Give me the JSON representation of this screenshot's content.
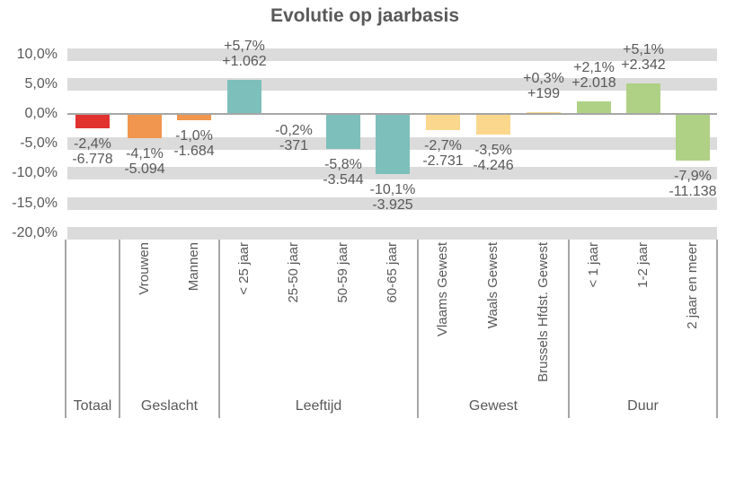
{
  "chart_data": {
    "type": "bar",
    "title": "Evolutie op jaarbasis",
    "xlabel": "",
    "ylabel": "",
    "ylim": [
      -20,
      10
    ],
    "grid": "horizontal-bands",
    "legend": "none",
    "yticks": [
      {
        "value": 10,
        "label": "10,0%"
      },
      {
        "value": 5,
        "label": "5,0%"
      },
      {
        "value": 0,
        "label": "0,0%"
      },
      {
        "value": -5,
        "label": "-5,0%"
      },
      {
        "value": -10,
        "label": "-10,0%"
      },
      {
        "value": -15,
        "label": "-15,0%"
      },
      {
        "value": -20,
        "label": "-20,0%"
      }
    ],
    "groups": [
      {
        "label": "Totaal",
        "color": "#E13230",
        "bars": [
          {
            "category": "",
            "pct": -2.4,
            "pct_label": "-2,4%",
            "abs_label": "-6.778"
          }
        ]
      },
      {
        "label": "Geslacht",
        "color": "#F0964E",
        "bars": [
          {
            "category": "Vrouwen",
            "pct": -4.1,
            "pct_label": "-4,1%",
            "abs_label": "-5.094"
          },
          {
            "category": "Mannen",
            "pct": -1.0,
            "pct_label": "-1,0%",
            "abs_label": "-1.684"
          }
        ]
      },
      {
        "label": "Leeftijd",
        "color": "#7DBFBB",
        "bars": [
          {
            "category": "< 25 jaar",
            "pct": 5.7,
            "pct_label": "+5,7%",
            "abs_label": "+1.062"
          },
          {
            "category": "25-50 jaar",
            "pct": -0.2,
            "pct_label": "-0,2%",
            "abs_label": "-371"
          },
          {
            "category": "50-59 jaar",
            "pct": -5.8,
            "pct_label": "-5,8%",
            "abs_label": "-3.544"
          },
          {
            "category": "60-65 jaar",
            "pct": -10.1,
            "pct_label": "-10,1%",
            "abs_label": "-3.925"
          }
        ]
      },
      {
        "label": "Gewest",
        "color": "#FBD78D",
        "bars": [
          {
            "category": "Vlaams Gewest",
            "pct": -2.7,
            "pct_label": "-2,7%",
            "abs_label": "-2.731"
          },
          {
            "category": "Waals Gewest",
            "pct": -3.5,
            "pct_label": "-3,5%",
            "abs_label": "-4.246"
          },
          {
            "category": "Brussels Hfdst. Gewest",
            "pct": 0.3,
            "pct_label": "+0,3%",
            "abs_label": "+199"
          }
        ]
      },
      {
        "label": "Duur",
        "color": "#AED185",
        "bars": [
          {
            "category": "< 1 jaar",
            "pct": 2.1,
            "pct_label": "+2,1%",
            "abs_label": "+2.018"
          },
          {
            "category": "1-2 jaar",
            "pct": 5.1,
            "pct_label": "+5,1%",
            "abs_label": "+2.342"
          },
          {
            "category": "2 jaar en meer",
            "pct": -7.9,
            "pct_label": "-7,9%",
            "abs_label": "-11.138"
          }
        ]
      }
    ],
    "styles": {
      "grid_band_color": "#DBDBDB",
      "zero_line_color": "#A6A6A6",
      "separator_color": "#A6A6A6",
      "text_color": "#595959",
      "background_color": "#FFFFFF"
    }
  }
}
